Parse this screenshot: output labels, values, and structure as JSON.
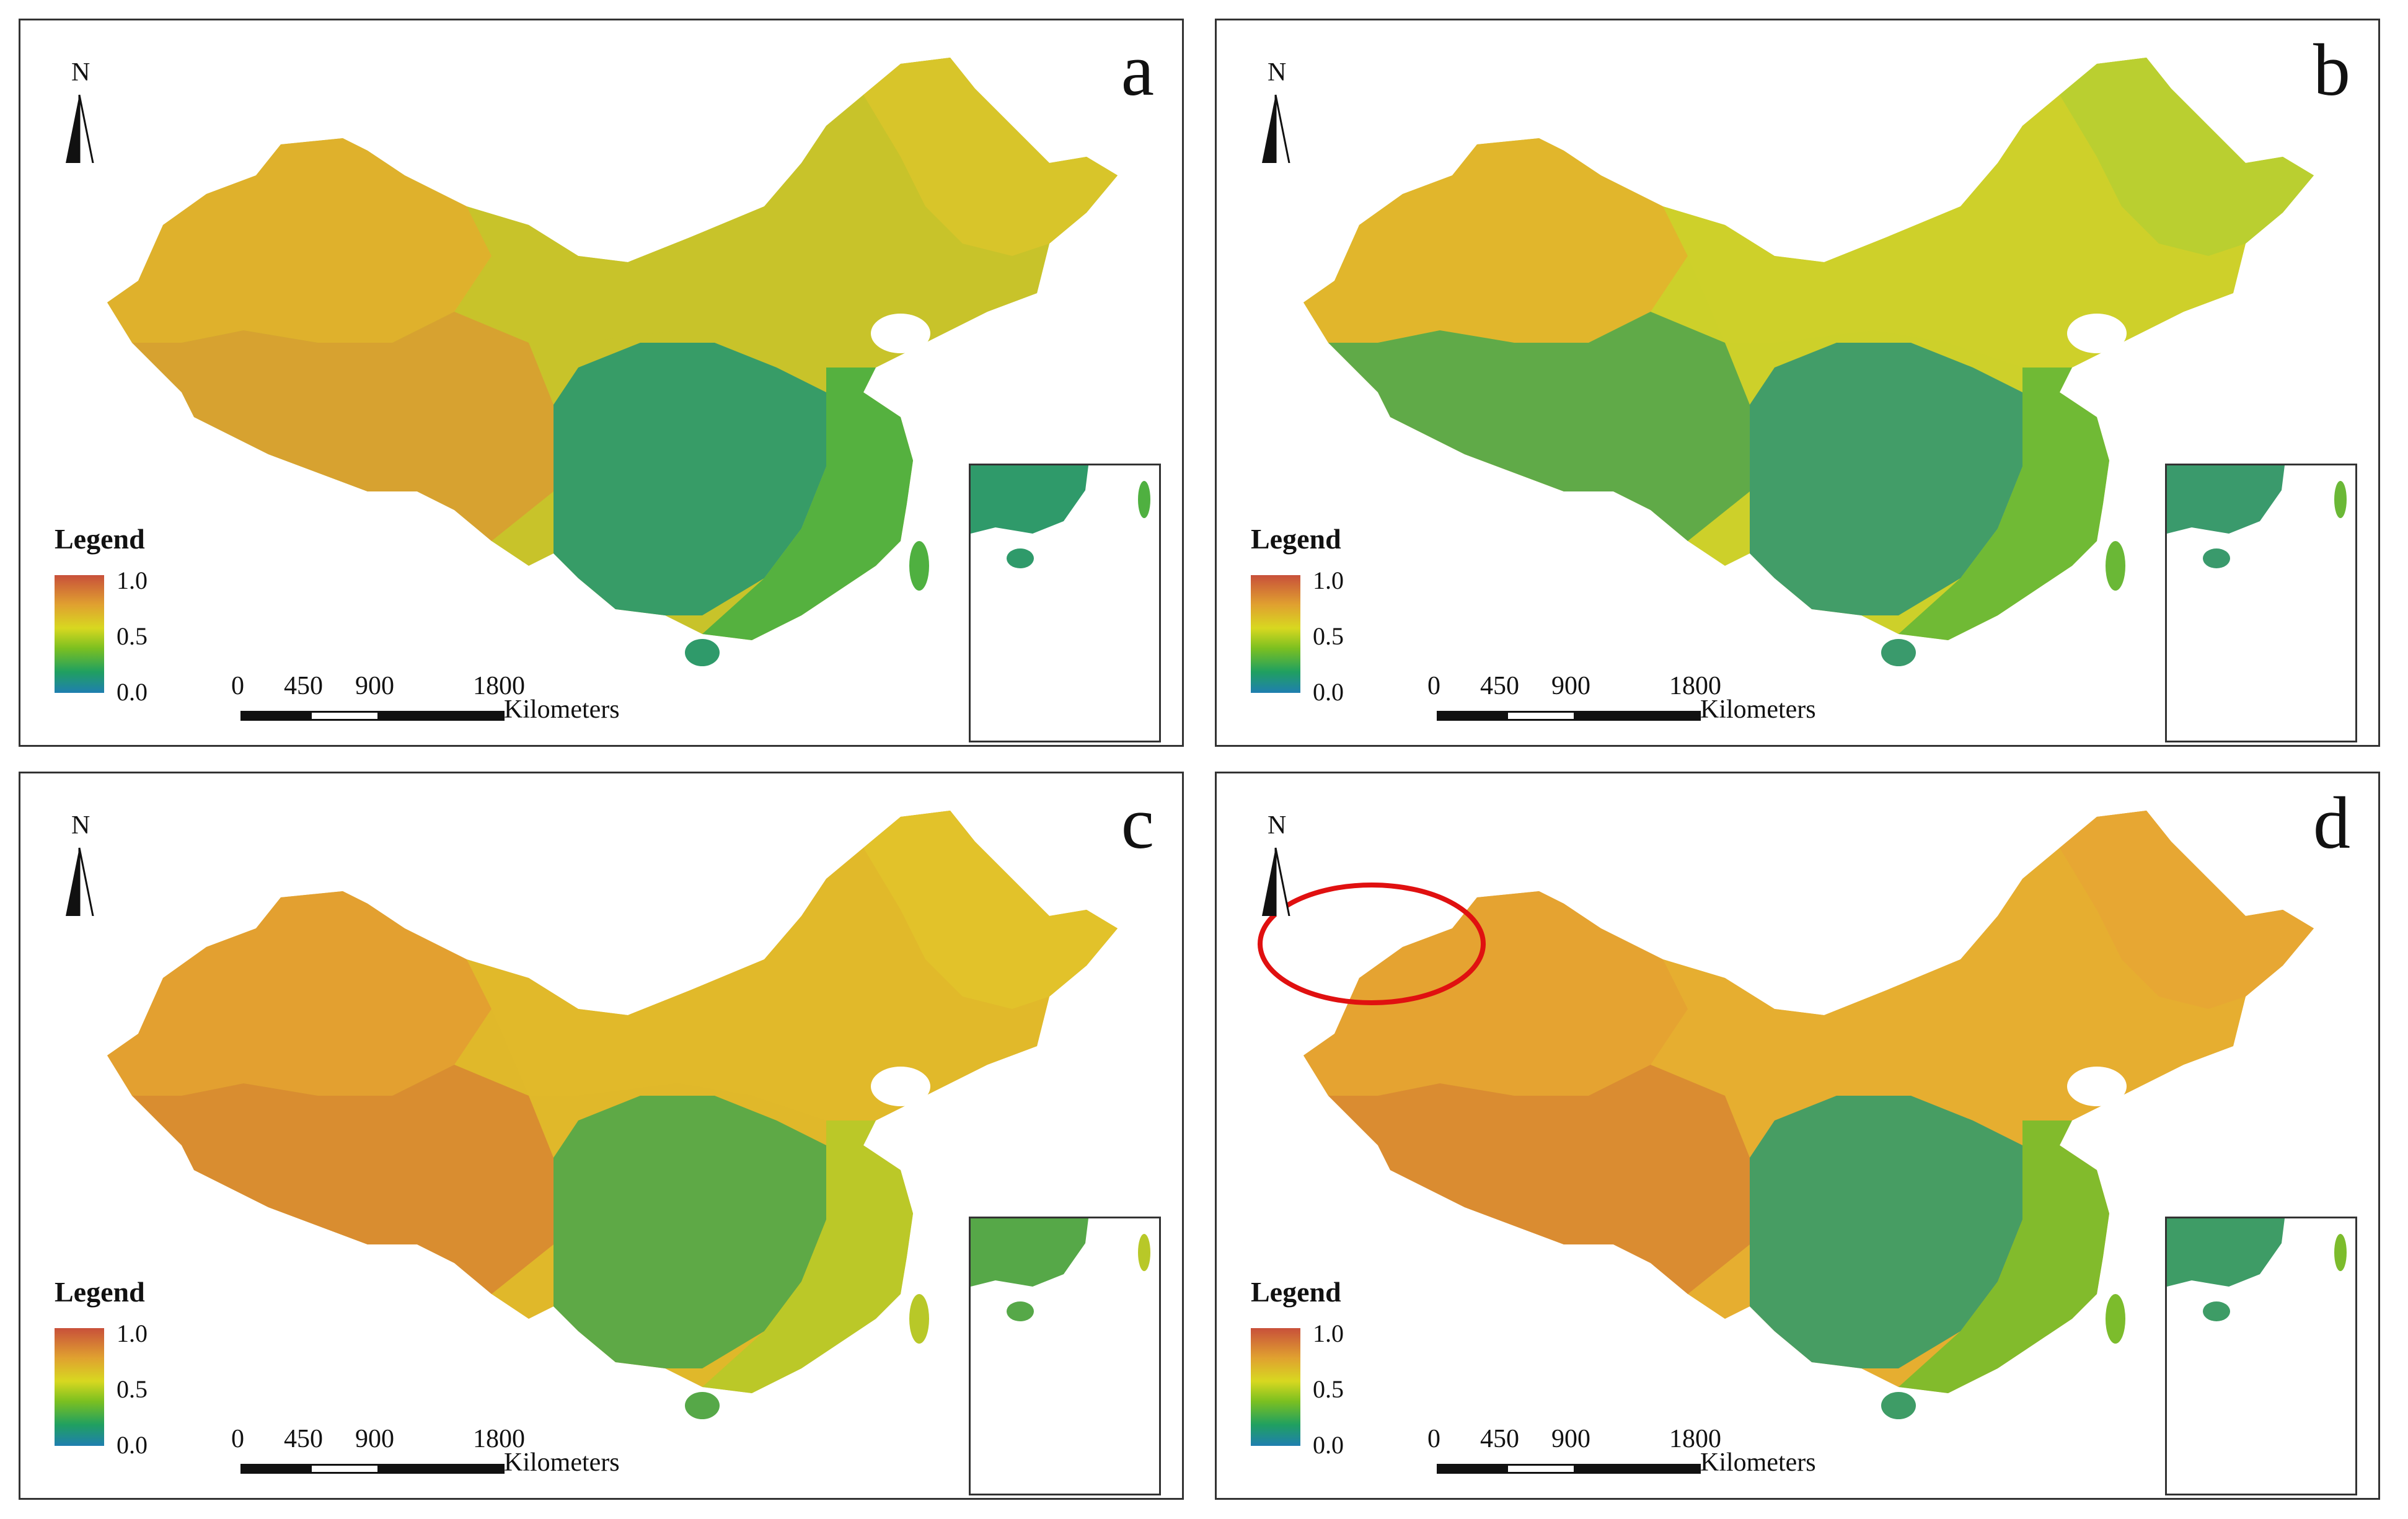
{
  "panels": [
    {
      "id": "a",
      "letter": "a",
      "palette": {
        "north": "#d9c52a",
        "west": "#e0b02c",
        "center": "#c8c32a",
        "south": "#2f9a6a",
        "east": "#4fb040",
        "tibet": "#d8a030"
      }
    },
    {
      "id": "b",
      "letter": "b",
      "palette": {
        "north": "#b8cf30",
        "west": "#e2b42c",
        "center": "#cdd02a",
        "south": "#3a9a6c",
        "east": "#6ab836",
        "tibet": "#5aa84a"
      }
    },
    {
      "id": "c",
      "letter": "c",
      "palette": {
        "north": "#e1c22a",
        "west": "#e39e30",
        "center": "#e0b82a",
        "south": "#56a848",
        "east": "#b8c828",
        "tibet": "#d88a30"
      }
    },
    {
      "id": "d",
      "letter": "d",
      "palette": {
        "north": "#e7a634",
        "west": "#e5a232",
        "center": "#e6ae30",
        "south": "#3e9c66",
        "east": "#7cbc2c",
        "tibet": "#d98a32"
      },
      "highlight": "red-circle"
    }
  ],
  "north_arrow": {
    "label": "N"
  },
  "legend": {
    "title": "Legend",
    "max": "1.0",
    "mid": "0.5",
    "min": "0.0"
  },
  "scale_bar": {
    "t0": "0",
    "t1": "450",
    "t2": "900",
    "t3": "1800",
    "unit": "Kilometers"
  },
  "colors": {
    "high": "#c8503a",
    "mid_high": "#e0a030",
    "mid": "#d8d820",
    "mid_low": "#7cc020",
    "low": "#1f7fb0",
    "highlight": "#e01010"
  }
}
